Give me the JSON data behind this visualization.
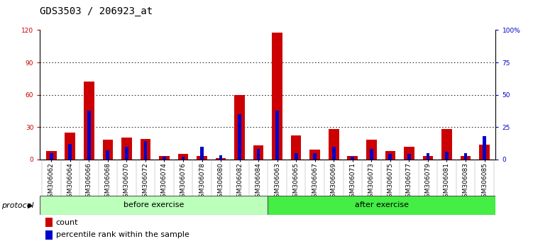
{
  "title": "GDS3503 / 206923_at",
  "samples": [
    "GSM306062",
    "GSM306064",
    "GSM306066",
    "GSM306068",
    "GSM306070",
    "GSM306072",
    "GSM306074",
    "GSM306076",
    "GSM306078",
    "GSM306080",
    "GSM306082",
    "GSM306084",
    "GSM306063",
    "GSM306065",
    "GSM306067",
    "GSM306069",
    "GSM306071",
    "GSM306073",
    "GSM306075",
    "GSM306077",
    "GSM306079",
    "GSM306081",
    "GSM306083",
    "GSM306085"
  ],
  "count": [
    8,
    25,
    72,
    18,
    20,
    19,
    3,
    5,
    3,
    1,
    60,
    13,
    118,
    22,
    9,
    28,
    3,
    18,
    8,
    12,
    3,
    28,
    3,
    14
  ],
  "percentile": [
    5,
    12,
    38,
    7,
    10,
    14,
    2,
    2,
    10,
    3,
    35,
    8,
    38,
    5,
    5,
    10,
    2,
    8,
    4,
    4,
    5,
    6,
    5,
    18
  ],
  "groups": [
    "before exercise",
    "after exercise"
  ],
  "group_sizes": [
    12,
    12
  ],
  "group_color_before": "#BBFFBB",
  "group_color_after": "#44EE44",
  "bar_width": 0.55,
  "blue_bar_width": 0.18,
  "ylim_left": [
    0,
    120
  ],
  "ylim_right": [
    0,
    100
  ],
  "yticks_left": [
    0,
    30,
    60,
    90,
    120
  ],
  "yticks_right": [
    0,
    25,
    50,
    75,
    100
  ],
  "ytick_labels_left": [
    "0",
    "30",
    "60",
    "90",
    "120"
  ],
  "ytick_labels_right": [
    "0",
    "25",
    "50",
    "75",
    "100%"
  ],
  "color_count": "#CC0000",
  "color_percentile": "#0000CC",
  "bg_color": "#FFFFFF",
  "xticklabel_bg": "#CCCCCC",
  "grid_color": "#000000",
  "label_count": "count",
  "label_percentile": "percentile rank within the sample",
  "protocol_label": "protocol",
  "title_fontsize": 10,
  "tick_fontsize": 6.5,
  "legend_fontsize": 8,
  "axis_label_color_left": "#CC0000",
  "axis_label_color_right": "#0000CC"
}
